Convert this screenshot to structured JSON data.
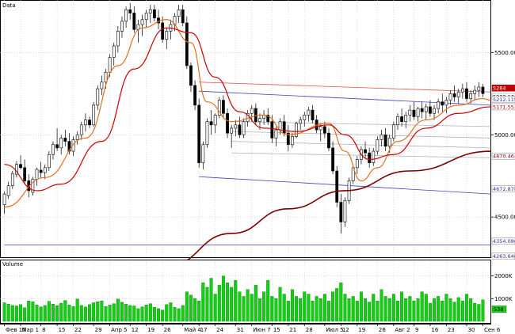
{
  "price_panel": {
    "title": "Data"
  },
  "volume_panel": {
    "title": "Volume"
  },
  "chart_data": [
    {
      "type": "candlestick",
      "title": "Data",
      "x_tick_labels": [
        "Фев 15",
        "Мар 1",
        "8",
        "15",
        "22",
        "29",
        "Апр 5",
        "12",
        "19",
        "26",
        "Май 4",
        "17",
        "24",
        "31",
        "Июн 7",
        "15",
        "21",
        "28",
        "Июл 5",
        "12",
        "19",
        "26",
        "Авг 2",
        "9",
        "16",
        "23",
        "30",
        "Сен 6"
      ],
      "y_tick_labels": [
        "4500.00",
        "5000.00",
        "5500.00"
      ],
      "ylim": [
        4270,
        5800
      ],
      "candles": [
        [
          4575,
          4655,
          4520,
          4640
        ],
        [
          4630,
          4715,
          4610,
          4690
        ],
        [
          4690,
          4780,
          4670,
          4765
        ],
        [
          4760,
          4840,
          4740,
          4820
        ],
        [
          4820,
          4875,
          4790,
          4800
        ],
        [
          4800,
          4850,
          4700,
          4720
        ],
        [
          4720,
          4760,
          4620,
          4660
        ],
        [
          4650,
          4745,
          4630,
          4730
        ],
        [
          4730,
          4800,
          4690,
          4790
        ],
        [
          4785,
          4835,
          4740,
          4770
        ],
        [
          4770,
          4820,
          4730,
          4800
        ],
        [
          4800,
          4900,
          4780,
          4880
        ],
        [
          4880,
          4960,
          4850,
          4940
        ],
        [
          4940,
          5040,
          4900,
          4920
        ],
        [
          4920,
          5000,
          4880,
          4980
        ],
        [
          4980,
          5030,
          4930,
          4960
        ],
        [
          4960,
          5010,
          4880,
          4900
        ],
        [
          4900,
          4990,
          4870,
          4970
        ],
        [
          4970,
          5020,
          4940,
          5000
        ],
        [
          5000,
          5080,
          4970,
          5060
        ],
        [
          5060,
          5130,
          5020,
          5090
        ],
        [
          5090,
          5110,
          5040,
          5060
        ],
        [
          5060,
          5200,
          5050,
          5180
        ],
        [
          5180,
          5300,
          5150,
          5280
        ],
        [
          5280,
          5360,
          5240,
          5320
        ],
        [
          5320,
          5400,
          5280,
          5380
        ],
        [
          5380,
          5490,
          5350,
          5470
        ],
        [
          5470,
          5560,
          5420,
          5540
        ],
        [
          5540,
          5660,
          5500,
          5630
        ],
        [
          5630,
          5720,
          5590,
          5690
        ],
        [
          5690,
          5780,
          5650,
          5760
        ],
        [
          5760,
          5800,
          5700,
          5740
        ],
        [
          5740,
          5780,
          5620,
          5640
        ],
        [
          5640,
          5700,
          5560,
          5670
        ],
        [
          5670,
          5730,
          5600,
          5700
        ],
        [
          5700,
          5760,
          5650,
          5740
        ],
        [
          5740,
          5790,
          5680,
          5760
        ],
        [
          5760,
          5790,
          5690,
          5710
        ],
        [
          5710,
          5760,
          5640,
          5680
        ],
        [
          5680,
          5720,
          5560,
          5580
        ],
        [
          5580,
          5650,
          5520,
          5630
        ],
        [
          5630,
          5700,
          5580,
          5670
        ],
        [
          5670,
          5740,
          5630,
          5720
        ],
        [
          5720,
          5790,
          5680,
          5760
        ],
        [
          5760,
          5790,
          5660,
          5680
        ],
        [
          5680,
          5720,
          5400,
          5420
        ],
        [
          5420,
          5440,
          5260,
          5300
        ],
        [
          5300,
          5330,
          5150,
          5180
        ],
        [
          5180,
          5220,
          4800,
          4830
        ],
        [
          4830,
          4960,
          4790,
          4940
        ],
        [
          4940,
          5100,
          4920,
          5080
        ],
        [
          5080,
          5150,
          5000,
          5060
        ],
        [
          5060,
          5130,
          5010,
          5120
        ],
        [
          5120,
          5230,
          5100,
          5210
        ],
        [
          5210,
          5240,
          5100,
          5130
        ],
        [
          5130,
          5160,
          4980,
          5010
        ],
        [
          5010,
          5060,
          4920,
          5040
        ],
        [
          5040,
          5090,
          4990,
          5060
        ],
        [
          5060,
          5110,
          4980,
          5000
        ],
        [
          5000,
          5100,
          4980,
          5080
        ],
        [
          5080,
          5150,
          5050,
          5130
        ],
        [
          5130,
          5180,
          5080,
          5160
        ],
        [
          5160,
          5190,
          5060,
          5080
        ],
        [
          5080,
          5130,
          5030,
          5100
        ],
        [
          5100,
          5150,
          5060,
          5120
        ],
        [
          5120,
          5160,
          5060,
          5080
        ],
        [
          5080,
          5120,
          4950,
          4980
        ],
        [
          4980,
          5050,
          4930,
          5030
        ],
        [
          5030,
          5100,
          5000,
          5080
        ],
        [
          5080,
          5120,
          4990,
          5010
        ],
        [
          5010,
          5060,
          4900,
          4940
        ],
        [
          4940,
          5010,
          4920,
          4990
        ],
        [
          4990,
          5080,
          4980,
          5070
        ],
        [
          5070,
          5110,
          5030,
          5090
        ],
        [
          5090,
          5140,
          5050,
          5120
        ],
        [
          5120,
          5170,
          5080,
          5150
        ],
        [
          5150,
          5180,
          5070,
          5090
        ],
        [
          5090,
          5120,
          5010,
          5030
        ],
        [
          5030,
          5070,
          4960,
          5050
        ],
        [
          5050,
          5080,
          4980,
          5010
        ],
        [
          5010,
          5040,
          4900,
          4920
        ],
        [
          4920,
          4960,
          4760,
          4780
        ],
        [
          4780,
          4810,
          4560,
          4590
        ],
        [
          4590,
          4640,
          4400,
          4470
        ],
        [
          4470,
          4620,
          4440,
          4600
        ],
        [
          4600,
          4740,
          4580,
          4720
        ],
        [
          4720,
          4820,
          4700,
          4800
        ],
        [
          4800,
          4870,
          4760,
          4850
        ],
        [
          4850,
          4930,
          4820,
          4910
        ],
        [
          4910,
          4960,
          4860,
          4890
        ],
        [
          4890,
          4920,
          4800,
          4830
        ],
        [
          4830,
          4920,
          4810,
          4900
        ],
        [
          4900,
          4990,
          4880,
          4970
        ],
        [
          4970,
          5030,
          4930,
          5000
        ],
        [
          5000,
          5040,
          4900,
          4930
        ],
        [
          4930,
          5000,
          4890,
          4980
        ],
        [
          4980,
          5080,
          4960,
          5060
        ],
        [
          5060,
          5130,
          5030,
          5110
        ],
        [
          5110,
          5160,
          5050,
          5080
        ],
        [
          5080,
          5140,
          5040,
          5120
        ],
        [
          5120,
          5180,
          5080,
          5150
        ],
        [
          5150,
          5200,
          5090,
          5110
        ],
        [
          5110,
          5170,
          5080,
          5160
        ],
        [
          5160,
          5200,
          5100,
          5140
        ],
        [
          5140,
          5190,
          5090,
          5170
        ],
        [
          5170,
          5210,
          5110,
          5130
        ],
        [
          5130,
          5180,
          5090,
          5160
        ],
        [
          5160,
          5220,
          5130,
          5200
        ],
        [
          5200,
          5250,
          5140,
          5180
        ],
        [
          5180,
          5230,
          5130,
          5210
        ],
        [
          5210,
          5270,
          5180,
          5250
        ],
        [
          5250,
          5300,
          5200,
          5230
        ],
        [
          5230,
          5280,
          5190,
          5260
        ],
        [
          5260,
          5310,
          5220,
          5280
        ],
        [
          5280,
          5320,
          5200,
          5220
        ],
        [
          5220,
          5270,
          5190,
          5250
        ],
        [
          5250,
          5300,
          5210,
          5270
        ],
        [
          5270,
          5320,
          5230,
          5290
        ],
        [
          5290,
          5310,
          5230,
          5250
        ]
      ],
      "overlays": [
        {
          "name": "fast-ma",
          "color": "#e07020",
          "points": [
            [
              0,
              4560
            ],
            [
              10,
              4740
            ],
            [
              20,
              4980
            ],
            [
              28,
              5420
            ],
            [
              34,
              5650
            ],
            [
              40,
              5700
            ],
            [
              46,
              5560
            ],
            [
              50,
              5200
            ],
            [
              56,
              5080
            ],
            [
              64,
              5120
            ],
            [
              70,
              5000
            ],
            [
              80,
              5070
            ],
            [
              84,
              4900
            ],
            [
              88,
              4720
            ],
            [
              92,
              4800
            ],
            [
              97,
              4960
            ],
            [
              104,
              5090
            ],
            [
              112,
              5180
            ],
            [
              118,
              5220
            ],
            [
              120,
              5210
            ]
          ]
        },
        {
          "name": "slow-ma",
          "color": "#cc0000",
          "points": [
            [
              0,
              4820
            ],
            [
              8,
              4660
            ],
            [
              14,
              4700
            ],
            [
              24,
              4960
            ],
            [
              32,
              5400
            ],
            [
              40,
              5650
            ],
            [
              46,
              5620
            ],
            [
              52,
              5350
            ],
            [
              58,
              5140
            ],
            [
              64,
              5040
            ],
            [
              72,
              5020
            ],
            [
              80,
              5060
            ],
            [
              84,
              5000
            ],
            [
              90,
              4850
            ],
            [
              96,
              4880
            ],
            [
              104,
              5040
            ],
            [
              112,
              5130
            ],
            [
              120,
              5170
            ]
          ]
        },
        {
          "name": "long-ma",
          "color": "#800000",
          "points": [
            [
              40,
              4200
            ],
            [
              56,
              4400
            ],
            [
              70,
              4550
            ],
            [
              84,
              4660
            ],
            [
              100,
              4780
            ],
            [
              120,
              4900
            ]
          ]
        }
      ],
      "trendlines": [
        {
          "name": "resistance-line",
          "color": "#e05050",
          "points": [
            [
              48,
              5320
            ],
            [
              120,
              5260
            ]
          ]
        },
        {
          "name": "channel-top",
          "color": "#4040c0",
          "points": [
            [
              48,
              5265
            ],
            [
              120,
              5180
            ]
          ]
        },
        {
          "name": "channel-bottom",
          "color": "#4040c0",
          "points": [
            [
              48,
              4745
            ],
            [
              120,
              4640
            ]
          ]
        },
        {
          "name": "support-line-1",
          "color": "#4040c0",
          "points": [
            [
              0,
              4330
            ],
            [
              128,
              4330
            ]
          ]
        },
        {
          "name": "support-line-2",
          "color": "#4040c0",
          "points": [
            [
              0,
              4230
            ],
            [
              128,
              4230
            ]
          ]
        },
        {
          "name": "fib-line-1",
          "color": "#b0b0b0",
          "points": [
            [
              56,
              5080
            ],
            [
              120,
              5050
            ]
          ]
        },
        {
          "name": "fib-line-2",
          "color": "#b0b0b0",
          "points": [
            [
              56,
              5020
            ],
            [
              120,
              4980
            ]
          ]
        },
        {
          "name": "fib-line-3",
          "color": "#b0b0b0",
          "points": [
            [
              56,
              4960
            ],
            [
              120,
              4920
            ]
          ]
        },
        {
          "name": "fib-line-4",
          "color": "#b0b0b0",
          "points": [
            [
              56,
              4890
            ],
            [
              120,
              4860
            ]
          ]
        }
      ],
      "price_tags": [
        {
          "label": "5284",
          "value": 5284,
          "bg": "#c00000",
          "fg": "#ffffff"
        },
        {
          "label": "5233.13",
          "value": 5232,
          "bg": "#ffffff",
          "fg": "#000000"
        },
        {
          "label": "5212.1192",
          "value": 5214,
          "bg": "#ffffff",
          "fg": "#3030a0"
        },
        {
          "label": "5171.55",
          "value": 5170,
          "bg": "#ffffff",
          "fg": "#c00000"
        },
        {
          "label": "4870.46",
          "value": 4870,
          "bg": "#ffffff",
          "fg": "#800000"
        },
        {
          "label": "4672.8784",
          "value": 4672,
          "bg": "#ffffff",
          "fg": "#3030a0"
        },
        {
          "label": "4354.0800",
          "value": 4354,
          "bg": "#ffffff",
          "fg": "#3030a0"
        },
        {
          "label": "4263.6400",
          "value": 4263,
          "bg": "#ffffff",
          "fg": "#3030a0"
        }
      ]
    },
    {
      "type": "bar",
      "title": "Volume",
      "y_tick_labels": [
        "1000K",
        "2000K"
      ],
      "ylim": [
        0,
        2300
      ],
      "bar_color": "#10d010",
      "values": [
        820,
        760,
        700,
        680,
        740,
        600,
        900,
        860,
        720,
        640,
        700,
        880,
        760,
        690,
        800,
        920,
        720,
        650,
        980,
        700,
        640,
        740,
        820,
        860,
        900,
        650,
        720,
        780,
        980,
        840,
        760,
        700,
        680,
        560,
        640,
        720,
        780,
        620,
        560,
        500,
        740,
        820,
        620,
        560,
        700,
        1300,
        1160,
        1000,
        900,
        1700,
        1500,
        1900,
        1200,
        1600,
        2000,
        1700,
        1500,
        1800,
        1300,
        1100,
        1400,
        1200,
        1600,
        1000,
        1300,
        1800,
        1100,
        1000,
        1500,
        1200,
        900,
        1400,
        1100,
        1000,
        1300,
        1200,
        900,
        1100,
        1000,
        1200,
        900,
        1300,
        1450,
        1700,
        1200,
        1000,
        1100,
        900,
        1300,
        1000,
        850,
        1200,
        900,
        1400,
        1100,
        1000,
        1200,
        900,
        1300,
        1000,
        1100,
        900,
        1000,
        1300,
        1200,
        800,
        1000,
        1100,
        900,
        1200,
        1000,
        850,
        1050,
        900,
        1200,
        1000,
        800,
        750,
        950
      ],
      "value_tag": {
        "label": "538",
        "value": 538
      }
    }
  ]
}
